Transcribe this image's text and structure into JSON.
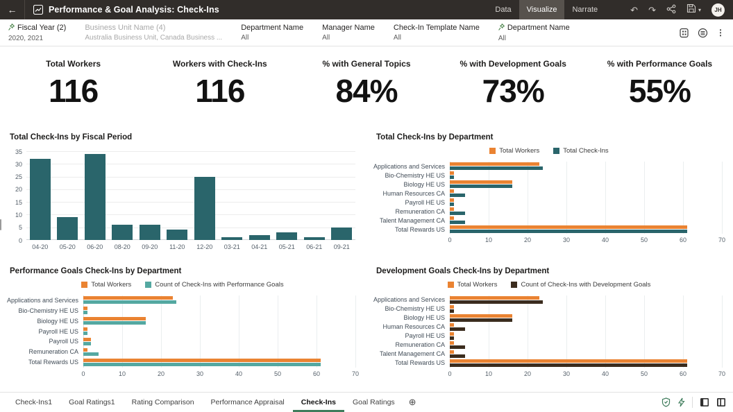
{
  "topbar": {
    "title": "Performance & Goal Analysis: Check-Ins",
    "tabs": [
      {
        "label": "Data",
        "active": false
      },
      {
        "label": "Visualize",
        "active": true
      },
      {
        "label": "Narrate",
        "active": false
      }
    ],
    "avatar": "JH"
  },
  "icons": {
    "back": "←",
    "undo": "↶",
    "redo": "↷",
    "save_caret": "▾",
    "kebab": "⋮",
    "add_canvas": "⊕"
  },
  "filters": {
    "items": [
      {
        "label": "Fiscal Year (2)",
        "value": "2020, 2021",
        "pinned": true,
        "muted": false
      },
      {
        "label": "Business Unit Name (4)",
        "value": "Australia Business Unit, Canada Business ...",
        "pinned": false,
        "muted": true
      },
      {
        "label": "Department Name",
        "value": "All",
        "pinned": false,
        "muted": false
      },
      {
        "label": "Manager Name",
        "value": "All",
        "pinned": false,
        "muted": false
      },
      {
        "label": "Check-In Template Name",
        "value": "All",
        "pinned": false,
        "muted": false
      },
      {
        "label": "Department Name",
        "value": "All",
        "pinned": true,
        "muted": false
      }
    ]
  },
  "kpis": [
    {
      "label": "Total Workers",
      "value": "116"
    },
    {
      "label": "Workers with Check-Ins",
      "value": "116"
    },
    {
      "label": "% with General Topics",
      "value": "84%"
    },
    {
      "label": "% with Development Goals",
      "value": "73%"
    },
    {
      "label": "% with Performance Goals",
      "value": "55%"
    }
  ],
  "colors": {
    "orange": "#EA8332",
    "teal_dark": "#2A656B",
    "teal_light": "#54A8A1",
    "brown_dark": "#3B2C1E",
    "green_accent": "#3E7C5B"
  },
  "chart_data": [
    {
      "type": "bar",
      "title": "Total Check-Ins by Fiscal Period",
      "categories": [
        "04-20",
        "05-20",
        "06-20",
        "08-20",
        "09-20",
        "11-20",
        "12-20",
        "03-21",
        "04-21",
        "05-21",
        "06-21",
        "09-21"
      ],
      "values": [
        32,
        9,
        34,
        6,
        6,
        4,
        25,
        1,
        2,
        3,
        1,
        5
      ],
      "series_color": "teal_dark",
      "xlabel": "",
      "ylabel": "",
      "ylim": [
        0,
        35
      ],
      "yticks": [
        0,
        5,
        10,
        15,
        20,
        25,
        30,
        35
      ],
      "grid": true,
      "legend": "none"
    },
    {
      "type": "bar-horizontal",
      "title": "Total Check-Ins by Department",
      "categories": [
        "Applications and Services",
        "Bio-Chemistry HE US",
        "Biology HE US",
        "Human Resources CA",
        "Payroll HE US",
        "Remuneration CA",
        "Talent Management CA",
        "Total Rewards US"
      ],
      "series": [
        {
          "name": "Total Workers",
          "color": "orange",
          "values": [
            23,
            1,
            16,
            1,
            1,
            1,
            1,
            61
          ]
        },
        {
          "name": "Total Check-Ins",
          "color": "teal_dark",
          "values": [
            24,
            1,
            16,
            4,
            1,
            4,
            4,
            61
          ]
        }
      ],
      "xlim": [
        0,
        70
      ],
      "xticks": [
        0,
        10,
        20,
        30,
        40,
        50,
        60,
        70
      ],
      "grid": true,
      "legend": "top"
    },
    {
      "type": "bar-horizontal",
      "title": "Performance Goals Check-Ins by Department",
      "categories": [
        "Applications and Services",
        "Bio-Chemistry HE US",
        "Biology HE US",
        "Payroll HE US",
        "Payroll US",
        "Remuneration CA",
        "Total Rewards US"
      ],
      "series": [
        {
          "name": "Total Workers",
          "color": "orange",
          "values": [
            23,
            1,
            16,
            1,
            2,
            1,
            61
          ]
        },
        {
          "name": "Count of Check-Ins with Performance Goals",
          "color": "teal_light",
          "values": [
            24,
            1,
            16,
            1,
            2,
            4,
            61
          ]
        }
      ],
      "xlim": [
        0,
        70
      ],
      "xticks": [
        0,
        10,
        20,
        30,
        40,
        50,
        60,
        70
      ],
      "grid": true,
      "legend": "top"
    },
    {
      "type": "bar-horizontal",
      "title": "Development Goals Check-Ins by Department",
      "categories": [
        "Applications and Services",
        "Bio-Chemistry HE US",
        "Biology HE US",
        "Human Resources CA",
        "Payroll HE US",
        "Remuneration CA",
        "Talent Management CA",
        "Total Rewards US"
      ],
      "series": [
        {
          "name": "Total Workers",
          "color": "orange",
          "values": [
            23,
            1,
            16,
            1,
            1,
            1,
            1,
            61
          ]
        },
        {
          "name": "Count of Check-Ins with Development Goals",
          "color": "brown_dark",
          "values": [
            24,
            1,
            16,
            4,
            1,
            4,
            4,
            61
          ]
        }
      ],
      "xlim": [
        0,
        70
      ],
      "xticks": [
        0,
        10,
        20,
        30,
        40,
        50,
        60,
        70
      ],
      "grid": true,
      "legend": "top"
    }
  ],
  "canvas_tabs": {
    "items": [
      {
        "label": "Check-Ins1",
        "active": false
      },
      {
        "label": "Goal Ratings1",
        "active": false
      },
      {
        "label": "Rating Comparison",
        "active": false
      },
      {
        "label": "Performance Appraisal",
        "active": false
      },
      {
        "label": "Check-Ins",
        "active": true
      },
      {
        "label": "Goal Ratings",
        "active": false
      }
    ]
  }
}
